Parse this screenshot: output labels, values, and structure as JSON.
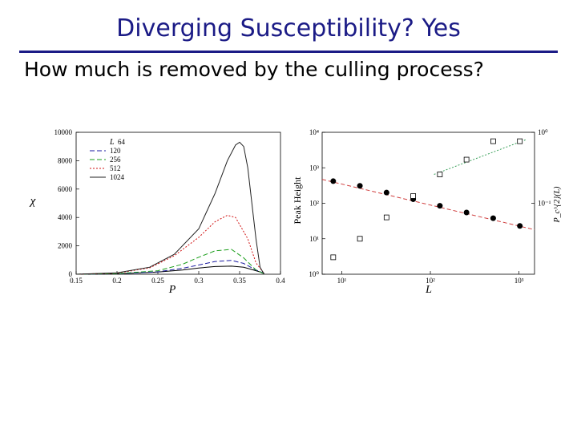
{
  "slide": {
    "title": "Diverging Susceptibility?  Yes",
    "subtitle": "How much is removed by the culling process?"
  },
  "colors": {
    "title": "#1b1b86",
    "L64": "#000000",
    "L120": "#1a1aa0",
    "L256": "#1a9e1a",
    "L512": "#d01010",
    "L1024": "#202020",
    "fit_dashed": "#d04040",
    "fit_dotted": "#3aa05a"
  },
  "chart_data": [
    {
      "type": "line",
      "title": "",
      "xlabel": "P",
      "ylabel": "χ",
      "xlim": [
        0.15,
        0.4
      ],
      "ylim": [
        0,
        10000
      ],
      "x_ticks": [
        "0.15",
        "0.2",
        "0.25",
        "0.3",
        "0.35",
        "0.4"
      ],
      "y_ticks": [
        "0",
        "2000",
        "4000",
        "6000",
        "8000",
        "10000"
      ],
      "legend_header": "L",
      "legend_position": "top-left",
      "series": [
        {
          "name": "64",
          "style": "solid",
          "x": [
            0.15,
            0.2,
            0.25,
            0.28,
            0.3,
            0.32,
            0.34,
            0.355,
            0.37,
            0.38
          ],
          "y": [
            0,
            30,
            150,
            300,
            440,
            540,
            570,
            490,
            250,
            80
          ]
        },
        {
          "name": "120",
          "style": "dashed",
          "x": [
            0.15,
            0.2,
            0.25,
            0.28,
            0.3,
            0.32,
            0.34,
            0.355,
            0.37,
            0.38
          ],
          "y": [
            0,
            30,
            170,
            420,
            650,
            900,
            980,
            760,
            300,
            60
          ]
        },
        {
          "name": "256",
          "style": "dashed",
          "x": [
            0.15,
            0.2,
            0.25,
            0.28,
            0.3,
            0.32,
            0.34,
            0.355,
            0.37,
            0.38
          ],
          "y": [
            0,
            40,
            250,
            700,
            1200,
            1650,
            1750,
            1150,
            300,
            30
          ]
        },
        {
          "name": "512",
          "style": "dotted",
          "x": [
            0.15,
            0.2,
            0.24,
            0.27,
            0.3,
            0.32,
            0.335,
            0.345,
            0.36,
            0.37,
            0.38
          ],
          "y": [
            0,
            80,
            450,
            1300,
            2600,
            3700,
            4150,
            4000,
            2500,
            800,
            50
          ]
        },
        {
          "name": "1024",
          "style": "solid",
          "x": [
            0.15,
            0.2,
            0.24,
            0.27,
            0.3,
            0.32,
            0.335,
            0.345,
            0.35,
            0.355,
            0.36,
            0.37,
            0.375,
            0.38
          ],
          "y": [
            0,
            100,
            500,
            1400,
            3200,
            5700,
            8000,
            9100,
            9300,
            9000,
            7500,
            2500,
            500,
            0
          ]
        }
      ]
    },
    {
      "type": "scatter",
      "title": "",
      "xlabel": "L",
      "ylabel": "Peak Height",
      "y2label": "P_c^{2}(L)",
      "xscale": "log",
      "yscale": "log",
      "xlim": [
        6,
        1500
      ],
      "ylim": [
        1,
        10000
      ],
      "x_ticks": [
        {
          "value": 10,
          "label": "10¹"
        },
        {
          "value": 100,
          "label": "10²"
        },
        {
          "value": 1000,
          "label": "10³"
        }
      ],
      "y_ticks": [
        {
          "value": 1,
          "label": "10⁰"
        },
        {
          "value": 10,
          "label": "10¹"
        },
        {
          "value": 100,
          "label": "10²"
        },
        {
          "value": 1000,
          "label": "10³"
        },
        {
          "value": 10000,
          "label": "10⁴"
        }
      ],
      "y2_ticks": [
        {
          "value": 100,
          "label": "10⁻¹"
        },
        {
          "value": 10000,
          "label": "10⁰"
        }
      ],
      "series": [
        {
          "marker": "filled-circle",
          "fit": "dashed",
          "x": [
            8,
            16,
            32,
            64,
            128,
            256,
            512,
            1024
          ],
          "y": [
            420,
            310,
            200,
            130,
            85,
            55,
            38,
            23
          ],
          "fit_x": [
            6,
            1500
          ],
          "fit_y": [
            470,
            18
          ]
        },
        {
          "marker": "open-square",
          "fit": "dotted",
          "x": [
            8,
            16,
            32,
            64,
            128,
            256,
            512,
            1024
          ],
          "y": [
            3,
            10,
            40,
            160,
            650,
            1700,
            5600,
            5600
          ],
          "fit_x": [
            110,
            1200
          ],
          "fit_y": [
            650,
            6200
          ]
        }
      ]
    }
  ]
}
